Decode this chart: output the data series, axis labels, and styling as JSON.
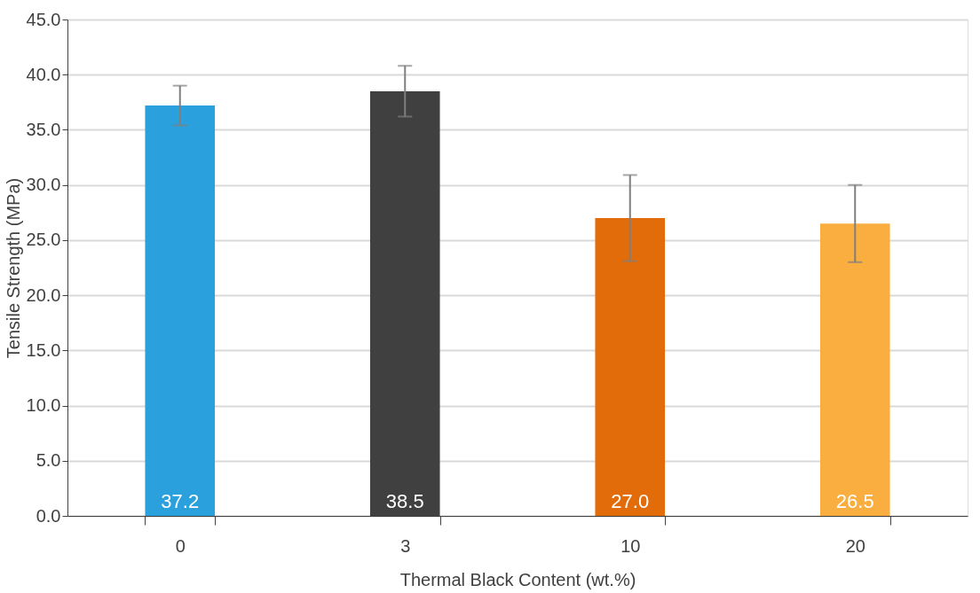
{
  "chart_data": {
    "type": "bar",
    "xlabel": "Thermal Black Content (wt.%)",
    "ylabel": "Tensile Strength (MPa)",
    "categories": [
      "0",
      "3",
      "10",
      "20"
    ],
    "values": [
      37.2,
      38.5,
      27.0,
      26.5
    ],
    "colors": [
      "#2aa0dc",
      "#404040",
      "#e36c0a",
      "#f9ae3f"
    ],
    "errors": [
      1.8,
      2.3,
      3.9,
      3.5
    ],
    "value_labels": [
      "37.2",
      "38.5",
      "27.0",
      "26.5"
    ],
    "ylim": [
      0,
      45
    ],
    "yticks": [
      {
        "value": 0,
        "label": "0.0"
      },
      {
        "value": 5,
        "label": "5.0"
      },
      {
        "value": 10,
        "label": "10.0"
      },
      {
        "value": 15,
        "label": "15.0"
      },
      {
        "value": 20,
        "label": "20.0"
      },
      {
        "value": 25,
        "label": "25.0"
      },
      {
        "value": 30,
        "label": "30.0"
      },
      {
        "value": 35,
        "label": "35.0"
      },
      {
        "value": 40,
        "label": "40.0"
      },
      {
        "value": 45,
        "label": "45.0"
      }
    ],
    "grid": "y"
  }
}
